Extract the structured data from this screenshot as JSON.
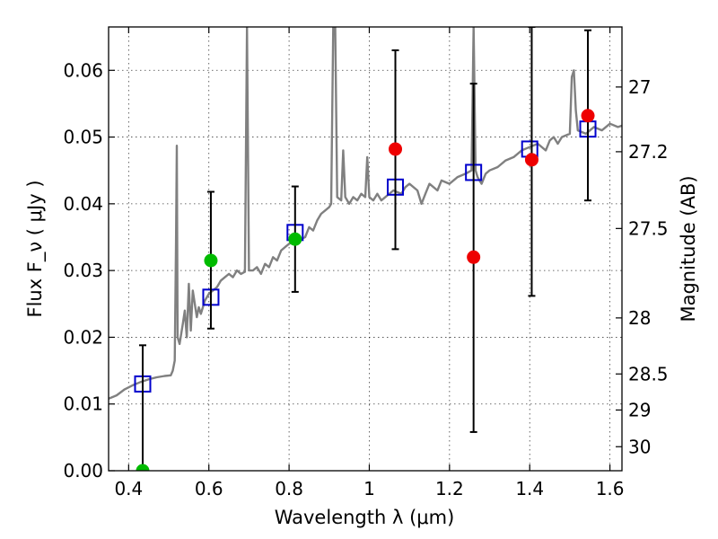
{
  "chart_data": {
    "type": "scatter",
    "title": "",
    "xlabel": "Wavelength  λ (μm)",
    "ylabel_left": "Flux  F_ν  ( μJy )",
    "ylabel_right": "Magnitude (AB)",
    "xlim": [
      0.35,
      1.63
    ],
    "ylim": [
      0.0,
      0.0665
    ],
    "grid": true,
    "x_ticks": [
      0.4,
      0.6,
      0.8,
      1.0,
      1.2,
      1.4,
      1.6
    ],
    "x_tick_labels": [
      "0.4",
      "0.6",
      "0.8",
      "1",
      "1.2",
      "1.4",
      "1.6"
    ],
    "y_ticks": [
      0.0,
      0.01,
      0.02,
      0.03,
      0.04,
      0.05,
      0.06
    ],
    "y_tick_labels": [
      "0.00",
      "0.01",
      "0.02",
      "0.03",
      "0.04",
      "0.05",
      "0.06"
    ],
    "right_ticks": [
      {
        "label": "27",
        "flux": 0.0575
      },
      {
        "label": "27.2",
        "flux": 0.0478
      },
      {
        "label": "27.5",
        "flux": 0.0363
      },
      {
        "label": "28",
        "flux": 0.0229
      },
      {
        "label": "28.5",
        "flux": 0.0145
      },
      {
        "label": "29",
        "flux": 0.0091
      },
      {
        "label": "30",
        "flux": 0.0036
      }
    ],
    "spectrum_color": "#808080",
    "spectrum": [
      [
        0.35,
        0.0108
      ],
      [
        0.37,
        0.0113
      ],
      [
        0.39,
        0.0122
      ],
      [
        0.41,
        0.0128
      ],
      [
        0.43,
        0.0133
      ],
      [
        0.45,
        0.0137
      ],
      [
        0.47,
        0.014
      ],
      [
        0.49,
        0.0142
      ],
      [
        0.505,
        0.0143
      ],
      [
        0.51,
        0.015
      ],
      [
        0.515,
        0.0165
      ],
      [
        0.518,
        0.034
      ],
      [
        0.52,
        0.0487
      ],
      [
        0.522,
        0.02
      ],
      [
        0.527,
        0.019
      ],
      [
        0.535,
        0.022
      ],
      [
        0.54,
        0.024
      ],
      [
        0.545,
        0.02
      ],
      [
        0.55,
        0.028
      ],
      [
        0.555,
        0.021
      ],
      [
        0.56,
        0.027
      ],
      [
        0.57,
        0.023
      ],
      [
        0.575,
        0.0245
      ],
      [
        0.58,
        0.0235
      ],
      [
        0.59,
        0.0255
      ],
      [
        0.6,
        0.0265
      ],
      [
        0.61,
        0.027
      ],
      [
        0.62,
        0.0275
      ],
      [
        0.63,
        0.0285
      ],
      [
        0.64,
        0.029
      ],
      [
        0.65,
        0.0295
      ],
      [
        0.66,
        0.029
      ],
      [
        0.67,
        0.03
      ],
      [
        0.68,
        0.0295
      ],
      [
        0.69,
        0.0298
      ],
      [
        0.695,
        0.0665
      ],
      [
        0.7,
        0.03
      ],
      [
        0.71,
        0.03
      ],
      [
        0.72,
        0.0305
      ],
      [
        0.73,
        0.0295
      ],
      [
        0.74,
        0.031
      ],
      [
        0.75,
        0.0305
      ],
      [
        0.76,
        0.032
      ],
      [
        0.77,
        0.0315
      ],
      [
        0.78,
        0.033
      ],
      [
        0.79,
        0.0335
      ],
      [
        0.8,
        0.034
      ],
      [
        0.82,
        0.0345
      ],
      [
        0.84,
        0.035
      ],
      [
        0.85,
        0.0365
      ],
      [
        0.86,
        0.036
      ],
      [
        0.87,
        0.0375
      ],
      [
        0.88,
        0.0385
      ],
      [
        0.89,
        0.039
      ],
      [
        0.9,
        0.0395
      ],
      [
        0.905,
        0.04
      ],
      [
        0.91,
        0.0665
      ],
      [
        0.915,
        0.0665
      ],
      [
        0.92,
        0.041
      ],
      [
        0.93,
        0.0405
      ],
      [
        0.935,
        0.048
      ],
      [
        0.94,
        0.041
      ],
      [
        0.95,
        0.04
      ],
      [
        0.96,
        0.041
      ],
      [
        0.97,
        0.0405
      ],
      [
        0.98,
        0.0415
      ],
      [
        0.99,
        0.041
      ],
      [
        0.995,
        0.047
      ],
      [
        1.0,
        0.041
      ],
      [
        1.01,
        0.0405
      ],
      [
        1.02,
        0.0415
      ],
      [
        1.03,
        0.0405
      ],
      [
        1.04,
        0.041
      ],
      [
        1.06,
        0.042
      ],
      [
        1.08,
        0.0415
      ],
      [
        1.09,
        0.0425
      ],
      [
        1.1,
        0.043
      ],
      [
        1.12,
        0.042
      ],
      [
        1.13,
        0.04
      ],
      [
        1.14,
        0.0415
      ],
      [
        1.15,
        0.043
      ],
      [
        1.16,
        0.0425
      ],
      [
        1.17,
        0.042
      ],
      [
        1.18,
        0.0435
      ],
      [
        1.2,
        0.043
      ],
      [
        1.22,
        0.044
      ],
      [
        1.24,
        0.0445
      ],
      [
        1.255,
        0.045
      ],
      [
        1.26,
        0.0665
      ],
      [
        1.265,
        0.045
      ],
      [
        1.27,
        0.044
      ],
      [
        1.28,
        0.043
      ],
      [
        1.29,
        0.0445
      ],
      [
        1.3,
        0.045
      ],
      [
        1.32,
        0.0455
      ],
      [
        1.34,
        0.0465
      ],
      [
        1.36,
        0.047
      ],
      [
        1.38,
        0.048
      ],
      [
        1.4,
        0.0485
      ],
      [
        1.42,
        0.049
      ],
      [
        1.44,
        0.048
      ],
      [
        1.45,
        0.0495
      ],
      [
        1.46,
        0.05
      ],
      [
        1.47,
        0.049
      ],
      [
        1.48,
        0.05
      ],
      [
        1.5,
        0.0505
      ],
      [
        1.505,
        0.059
      ],
      [
        1.51,
        0.06
      ],
      [
        1.515,
        0.054
      ],
      [
        1.52,
        0.051
      ],
      [
        1.54,
        0.0505
      ],
      [
        1.56,
        0.0515
      ],
      [
        1.58,
        0.051
      ],
      [
        1.6,
        0.052
      ],
      [
        1.62,
        0.0515
      ],
      [
        1.63,
        0.0517
      ]
    ],
    "model_photometry": {
      "marker": "open-square",
      "color": "#0000cc",
      "points": [
        [
          0.435,
          0.013
        ],
        [
          0.605,
          0.026
        ],
        [
          0.815,
          0.0357
        ],
        [
          1.065,
          0.0425
        ],
        [
          1.26,
          0.0447
        ],
        [
          1.4,
          0.0482
        ],
        [
          1.545,
          0.0512
        ]
      ]
    },
    "observed_green": {
      "marker": "filled-circle",
      "color": "#00bb00",
      "points": [
        [
          0.435,
          0.0
        ],
        [
          0.605,
          0.0315
        ],
        [
          0.815,
          0.0347
        ]
      ]
    },
    "observed_red": {
      "marker": "filled-circle",
      "color": "#ee0000",
      "points": [
        [
          1.065,
          0.0482
        ],
        [
          1.26,
          0.032
        ],
        [
          1.405,
          0.0466
        ],
        [
          1.545,
          0.0532
        ]
      ]
    },
    "error_bars": [
      {
        "x": 0.435,
        "lo": 0.0,
        "hi": 0.0188
      },
      {
        "x": 0.605,
        "lo": 0.0213,
        "hi": 0.0418
      },
      {
        "x": 0.815,
        "lo": 0.0268,
        "hi": 0.0426
      },
      {
        "x": 1.065,
        "lo": 0.0332,
        "hi": 0.063
      },
      {
        "x": 1.26,
        "lo": 0.0058,
        "hi": 0.058
      },
      {
        "x": 1.405,
        "lo": 0.0262,
        "hi": 0.0665
      },
      {
        "x": 1.545,
        "lo": 0.0405,
        "hi": 0.066
      }
    ]
  }
}
